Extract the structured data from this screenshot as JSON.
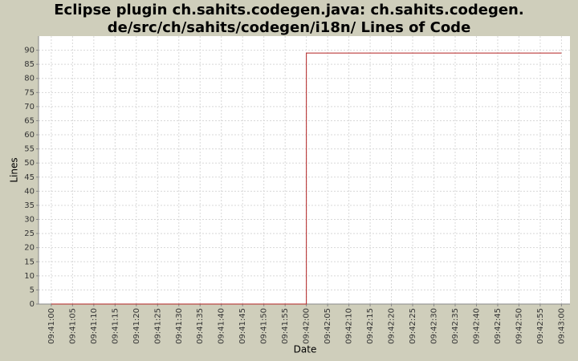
{
  "chart_data": {
    "type": "line",
    "step": true,
    "title": [
      "Eclipse plugin ch.sahits.codegen.java: ch.sahits.codegen.",
      "de/src/ch/sahits/codegen/i18n/ Lines of Code"
    ],
    "x_label": "Date",
    "y_label": "Lines",
    "x": [
      "09:41:00",
      "09:42:00",
      "09:43:00"
    ],
    "series": [
      {
        "name": "Lines of Code",
        "color": "#b22222",
        "values": [
          0,
          89,
          89
        ]
      }
    ],
    "xlim": [
      "09:40:57",
      "09:43:02"
    ],
    "xticks": [
      "09:41:00",
      "09:41:05",
      "09:41:10",
      "09:41:15",
      "09:41:20",
      "09:41:25",
      "09:41:30",
      "09:41:35",
      "09:41:40",
      "09:41:45",
      "09:41:50",
      "09:41:55",
      "09:42:00",
      "09:42:05",
      "09:42:10",
      "09:42:15",
      "09:42:20",
      "09:42:25",
      "09:42:30",
      "09:42:35",
      "09:42:40",
      "09:42:45",
      "09:42:50",
      "09:42:55",
      "09:43:00"
    ],
    "ylim": [
      0,
      95
    ],
    "yticks": [
      0,
      5,
      10,
      15,
      20,
      25,
      30,
      35,
      40,
      45,
      50,
      55,
      60,
      65,
      70,
      75,
      80,
      85,
      90
    ],
    "grid": true
  }
}
